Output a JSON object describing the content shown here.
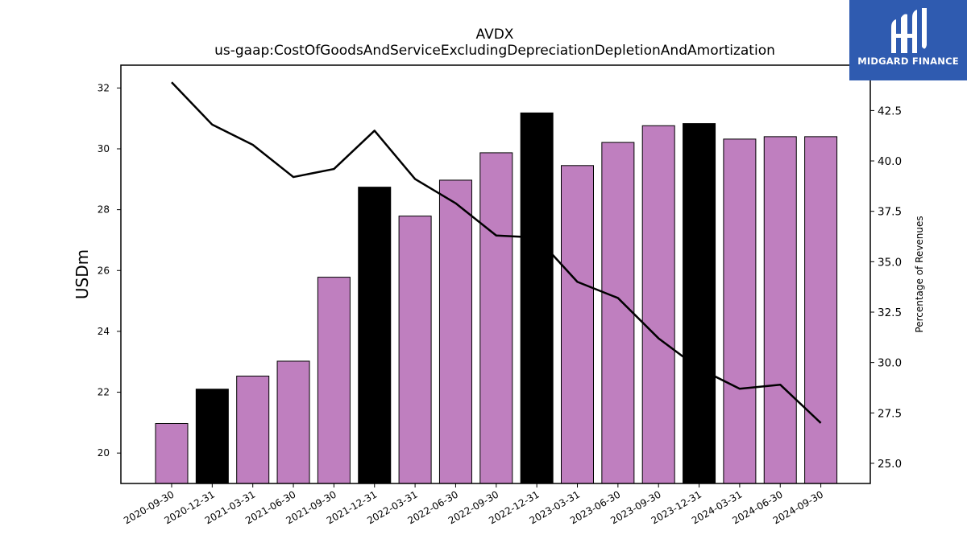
{
  "chart_data": {
    "type": "bar",
    "title": "AVDX",
    "subtitle": "us-gaap:CostOfGoodsAndServiceExcludingDepreciationDepletionAndAmortization",
    "ylabel": "USDm",
    "y2label": "Percentage of Revenues",
    "ylim": [
      19,
      32.75
    ],
    "y2lim": [
      24,
      44.75
    ],
    "yticks": [
      20,
      22,
      24,
      26,
      28,
      30,
      32
    ],
    "y2ticks": [
      25.0,
      27.5,
      30.0,
      32.5,
      35.0,
      37.5,
      40.0,
      42.5
    ],
    "categories": [
      "2020-09-30",
      "2020-12-31",
      "2021-03-31",
      "2021-06-30",
      "2021-09-30",
      "2021-12-31",
      "2022-03-31",
      "2022-06-30",
      "2022-09-30",
      "2022-12-31",
      "2023-03-31",
      "2023-06-30",
      "2023-09-30",
      "2023-12-31",
      "2024-03-31",
      "2024-06-30",
      "2024-09-30"
    ],
    "series": [
      {
        "type": "bar",
        "values": [
          20.97,
          22.1,
          22.53,
          23.02,
          25.78,
          28.74,
          27.79,
          28.97,
          29.87,
          31.18,
          29.45,
          30.21,
          30.76,
          30.83,
          30.32,
          30.4,
          30.4
        ],
        "colors": [
          "#bf7fbf",
          "#000000",
          "#bf7fbf",
          "#bf7fbf",
          "#bf7fbf",
          "#000000",
          "#bf7fbf",
          "#bf7fbf",
          "#bf7fbf",
          "#000000",
          "#bf7fbf",
          "#bf7fbf",
          "#bf7fbf",
          "#000000",
          "#bf7fbf",
          "#bf7fbf",
          "#bf7fbf"
        ]
      },
      {
        "type": "line",
        "axis": "right",
        "color": "#000000",
        "values": [
          43.9,
          41.8,
          40.8,
          39.2,
          39.6,
          41.5,
          39.1,
          37.9,
          36.3,
          36.2,
          34.0,
          33.2,
          31.2,
          29.7,
          28.7,
          28.9,
          27.0
        ]
      }
    ]
  },
  "logo": {
    "text": "MIDGARD FINANCE"
  }
}
